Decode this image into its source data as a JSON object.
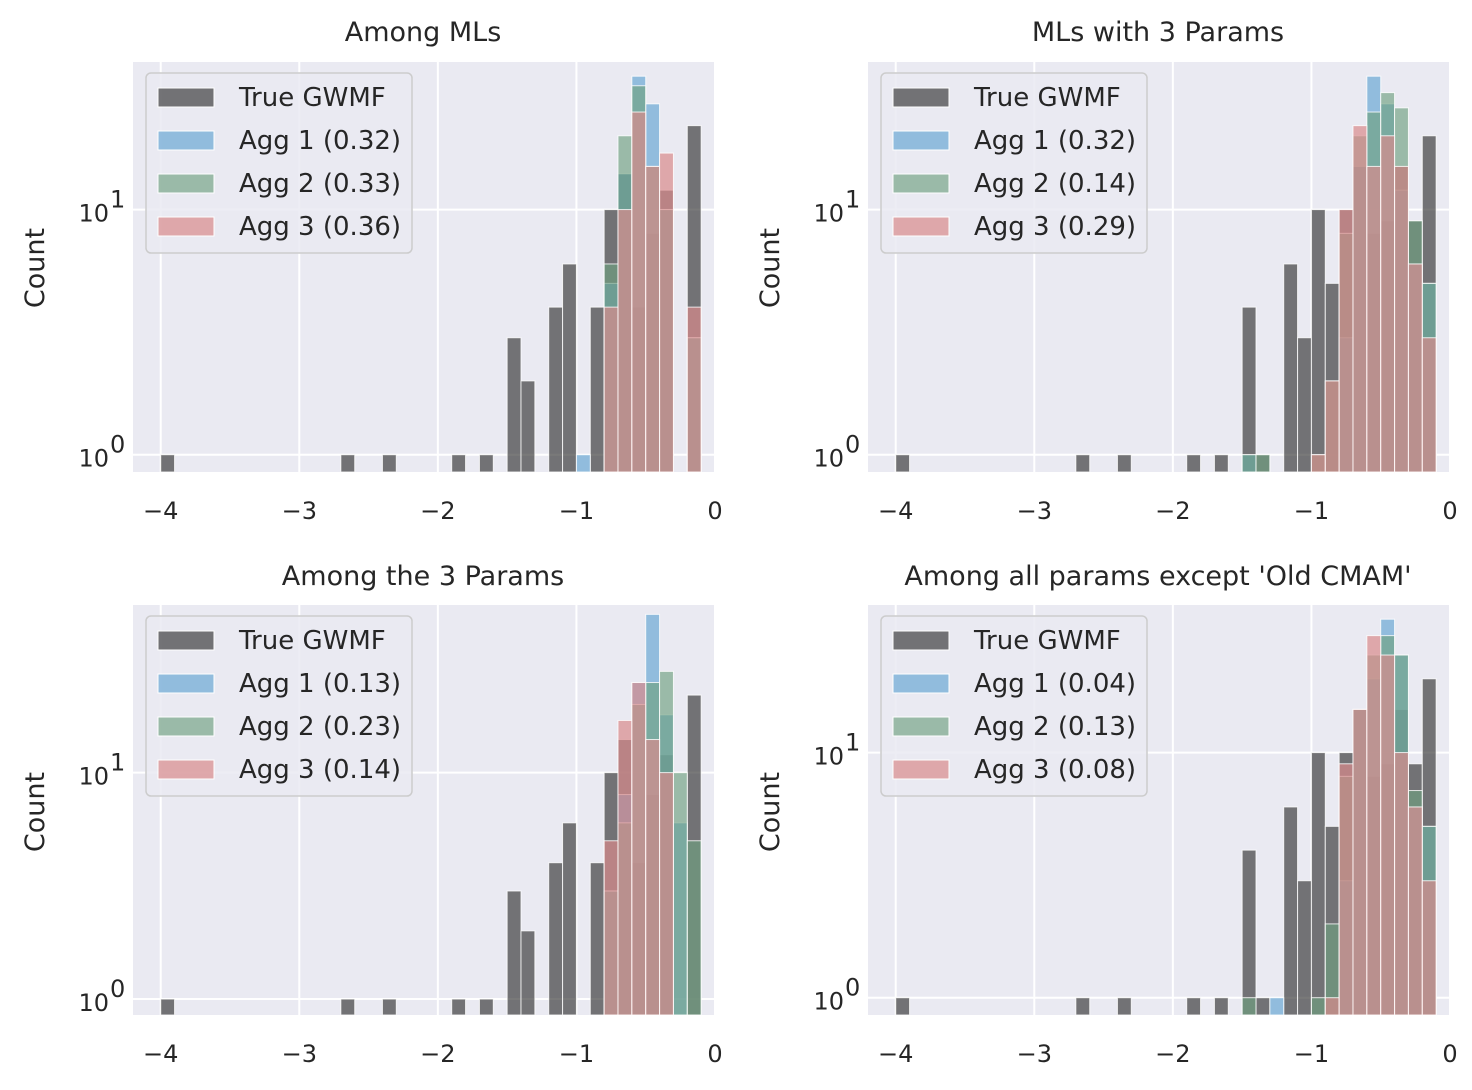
{
  "series_colors": {
    "true_gwmf": "#3a3a3a",
    "agg1": "#6ba8d4",
    "agg2": "#6e9f80",
    "agg3": "#d98a8c"
  },
  "background": {
    "axes_face": "#eaeaf2",
    "grid": "#ffffff"
  },
  "chart_data": [
    {
      "type": "bar",
      "title": "Among MLs",
      "xlabel": "",
      "ylabel": "Count",
      "yscale": "log",
      "xlim": [
        -4.2,
        0.0
      ],
      "ylim": [
        0.85,
        40
      ],
      "xticks": [
        "−4",
        "−3",
        "−2",
        "−1",
        "0"
      ],
      "xtick_values": [
        -4,
        -3,
        -2,
        -1,
        0
      ],
      "ytick_labels": [
        {
          "base": "10",
          "exp": "0",
          "value": 1
        },
        {
          "base": "10",
          "exp": "1",
          "value": 10
        }
      ],
      "grid": true,
      "legend": "top-left",
      "bin_width": 0.1,
      "series": [
        {
          "name": "True GWMF",
          "key": "true_gwmf",
          "bins": [
            [
              -4.0,
              1
            ],
            [
              -2.7,
              1
            ],
            [
              -2.4,
              1
            ],
            [
              -1.9,
              1
            ],
            [
              -1.7,
              1
            ],
            [
              -1.5,
              3
            ],
            [
              -1.4,
              2
            ],
            [
              -1.2,
              4
            ],
            [
              -1.1,
              6
            ],
            [
              -0.9,
              4
            ],
            [
              -0.8,
              10
            ],
            [
              -0.7,
              14
            ],
            [
              -0.6,
              4
            ],
            [
              -0.5,
              8
            ],
            [
              -0.4,
              12
            ],
            [
              -0.2,
              22
            ]
          ]
        },
        {
          "name": "Agg 1 (0.32)",
          "key": "agg1",
          "bins": [
            [
              -1.0,
              1
            ],
            [
              -0.8,
              5
            ],
            [
              -0.7,
              14
            ],
            [
              -0.6,
              35
            ],
            [
              -0.5,
              27
            ],
            [
              -0.4,
              10
            ],
            [
              -0.2,
              3
            ]
          ]
        },
        {
          "name": "Agg 2 (0.33)",
          "key": "agg2",
          "bins": [
            [
              -0.8,
              6
            ],
            [
              -0.7,
              20
            ],
            [
              -0.6,
              32
            ],
            [
              -0.5,
              15
            ],
            [
              -0.4,
              10
            ],
            [
              -0.2,
              3
            ]
          ]
        },
        {
          "name": "Agg 3 (0.36)",
          "key": "agg3",
          "bins": [
            [
              -0.8,
              4
            ],
            [
              -0.7,
              10
            ],
            [
              -0.6,
              25
            ],
            [
              -0.5,
              15
            ],
            [
              -0.4,
              17
            ],
            [
              -0.2,
              4
            ]
          ]
        }
      ]
    },
    {
      "type": "bar",
      "title": "MLs with 3 Params",
      "xlabel": "",
      "ylabel": "Count",
      "yscale": "log",
      "xlim": [
        -4.2,
        0.0
      ],
      "ylim": [
        0.85,
        40
      ],
      "xticks": [
        "−4",
        "−3",
        "−2",
        "−1",
        "0"
      ],
      "xtick_values": [
        -4,
        -3,
        -2,
        -1,
        0
      ],
      "ytick_labels": [
        {
          "base": "10",
          "exp": "0",
          "value": 1
        },
        {
          "base": "10",
          "exp": "1",
          "value": 10
        }
      ],
      "grid": true,
      "legend": "top-left",
      "bin_width": 0.1,
      "series": [
        {
          "name": "True GWMF",
          "key": "true_gwmf",
          "bins": [
            [
              -4.0,
              1
            ],
            [
              -2.7,
              1
            ],
            [
              -2.4,
              1
            ],
            [
              -1.9,
              1
            ],
            [
              -1.7,
              1
            ],
            [
              -1.5,
              4
            ],
            [
              -1.4,
              1
            ],
            [
              -1.2,
              6
            ],
            [
              -1.1,
              3
            ],
            [
              -1.0,
              10
            ],
            [
              -0.9,
              5
            ],
            [
              -0.8,
              10
            ],
            [
              -0.7,
              15
            ],
            [
              -0.6,
              8
            ],
            [
              -0.5,
              9
            ],
            [
              -0.4,
              15
            ],
            [
              -0.3,
              9
            ],
            [
              -0.2,
              20
            ]
          ]
        },
        {
          "name": "Agg 1 (0.32)",
          "key": "agg1",
          "bins": [
            [
              -1.5,
              1
            ],
            [
              -0.8,
              3
            ],
            [
              -0.7,
              15
            ],
            [
              -0.6,
              35
            ],
            [
              -0.5,
              27
            ],
            [
              -0.4,
              12
            ],
            [
              -0.3,
              6
            ],
            [
              -0.2,
              5
            ]
          ]
        },
        {
          "name": "Agg 2 (0.14)",
          "key": "agg2",
          "bins": [
            [
              -1.5,
              1
            ],
            [
              -1.4,
              1
            ],
            [
              -1.0,
              1
            ],
            [
              -0.9,
              2
            ],
            [
              -0.8,
              8
            ],
            [
              -0.7,
              20
            ],
            [
              -0.6,
              25
            ],
            [
              -0.5,
              30
            ],
            [
              -0.4,
              26
            ],
            [
              -0.3,
              9
            ],
            [
              -0.2,
              5
            ]
          ]
        },
        {
          "name": "Agg 3 (0.29)",
          "key": "agg3",
          "bins": [
            [
              -1.0,
              1
            ],
            [
              -0.9,
              2
            ],
            [
              -0.8,
              10
            ],
            [
              -0.7,
              22
            ],
            [
              -0.6,
              15
            ],
            [
              -0.5,
              20
            ],
            [
              -0.4,
              15
            ],
            [
              -0.3,
              6
            ],
            [
              -0.2,
              3
            ]
          ]
        }
      ]
    },
    {
      "type": "bar",
      "title": "Among the 3 Params",
      "xlabel": "",
      "ylabel": "Count",
      "yscale": "log",
      "xlim": [
        -4.2,
        0.0
      ],
      "ylim": [
        0.85,
        55
      ],
      "xticks": [
        "−4",
        "−3",
        "−2",
        "−1",
        "0"
      ],
      "xtick_values": [
        -4,
        -3,
        -2,
        -1,
        0
      ],
      "ytick_labels": [
        {
          "base": "10",
          "exp": "0",
          "value": 1
        },
        {
          "base": "10",
          "exp": "1",
          "value": 10
        }
      ],
      "grid": true,
      "legend": "top-left",
      "bin_width": 0.1,
      "series": [
        {
          "name": "True GWMF",
          "key": "true_gwmf",
          "bins": [
            [
              -4.0,
              1
            ],
            [
              -2.7,
              1
            ],
            [
              -2.4,
              1
            ],
            [
              -1.9,
              1
            ],
            [
              -1.7,
              1
            ],
            [
              -1.5,
              3
            ],
            [
              -1.4,
              2
            ],
            [
              -1.2,
              4
            ],
            [
              -1.1,
              6
            ],
            [
              -0.9,
              4
            ],
            [
              -0.8,
              10
            ],
            [
              -0.7,
              14
            ],
            [
              -0.6,
              4
            ],
            [
              -0.5,
              8
            ],
            [
              -0.4,
              12
            ],
            [
              -0.2,
              22
            ]
          ]
        },
        {
          "name": "Agg 1 (0.13)",
          "key": "agg1",
          "bins": [
            [
              -0.8,
              3
            ],
            [
              -0.7,
              8
            ],
            [
              -0.6,
              25
            ],
            [
              -0.5,
              50
            ],
            [
              -0.4,
              18
            ],
            [
              -0.3,
              6
            ]
          ]
        },
        {
          "name": "Agg 2 (0.23)",
          "key": "agg2",
          "bins": [
            [
              -0.8,
              3
            ],
            [
              -0.7,
              6
            ],
            [
              -0.6,
              20
            ],
            [
              -0.5,
              25
            ],
            [
              -0.4,
              28
            ],
            [
              -0.3,
              10
            ],
            [
              -0.2,
              5
            ]
          ]
        },
        {
          "name": "Agg 3 (0.14)",
          "key": "agg3",
          "bins": [
            [
              -0.8,
              5
            ],
            [
              -0.7,
              17
            ],
            [
              -0.6,
              25
            ],
            [
              -0.5,
              14
            ],
            [
              -0.4,
              10
            ]
          ]
        }
      ]
    },
    {
      "type": "bar",
      "title": "Among all params except 'Old CMAM'",
      "xlabel": "",
      "ylabel": "Count",
      "yscale": "log",
      "xlim": [
        -4.2,
        0.0
      ],
      "ylim": [
        0.85,
        40
      ],
      "xticks": [
        "−4",
        "−3",
        "−2",
        "−1",
        "0"
      ],
      "xtick_values": [
        -4,
        -3,
        -2,
        -1,
        0
      ],
      "ytick_labels": [
        {
          "base": "10",
          "exp": "0",
          "value": 1
        },
        {
          "base": "10",
          "exp": "1",
          "value": 10
        }
      ],
      "grid": true,
      "legend": "top-left",
      "bin_width": 0.1,
      "series": [
        {
          "name": "True GWMF",
          "key": "true_gwmf",
          "bins": [
            [
              -4.0,
              1
            ],
            [
              -2.7,
              1
            ],
            [
              -2.4,
              1
            ],
            [
              -1.9,
              1
            ],
            [
              -1.7,
              1
            ],
            [
              -1.5,
              4
            ],
            [
              -1.4,
              1
            ],
            [
              -1.2,
              6
            ],
            [
              -1.1,
              3
            ],
            [
              -1.0,
              10
            ],
            [
              -0.9,
              5
            ],
            [
              -0.8,
              10
            ],
            [
              -0.7,
              15
            ],
            [
              -0.6,
              8
            ],
            [
              -0.5,
              9
            ],
            [
              -0.4,
              15
            ],
            [
              -0.3,
              9
            ],
            [
              -0.2,
              20
            ]
          ]
        },
        {
          "name": "Agg 1 (0.04)",
          "key": "agg1",
          "bins": [
            [
              -1.3,
              1
            ],
            [
              -0.8,
              3
            ],
            [
              -0.7,
              15
            ],
            [
              -0.6,
              20
            ],
            [
              -0.5,
              35
            ],
            [
              -0.4,
              25
            ],
            [
              -0.3,
              6
            ],
            [
              -0.2,
              5
            ]
          ]
        },
        {
          "name": "Agg 2 (0.13)",
          "key": "agg2",
          "bins": [
            [
              -1.5,
              1
            ],
            [
              -1.0,
              1
            ],
            [
              -0.9,
              2
            ],
            [
              -0.8,
              8
            ],
            [
              -0.7,
              15
            ],
            [
              -0.6,
              25
            ],
            [
              -0.5,
              30
            ],
            [
              -0.4,
              25
            ],
            [
              -0.3,
              7
            ],
            [
              -0.2,
              5
            ]
          ]
        },
        {
          "name": "Agg 3 (0.08)",
          "key": "agg3",
          "bins": [
            [
              -0.9,
              1
            ],
            [
              -0.8,
              9
            ],
            [
              -0.7,
              15
            ],
            [
              -0.6,
              30
            ],
            [
              -0.5,
              25
            ],
            [
              -0.4,
              10
            ],
            [
              -0.3,
              6
            ],
            [
              -0.2,
              3
            ]
          ]
        }
      ]
    }
  ]
}
